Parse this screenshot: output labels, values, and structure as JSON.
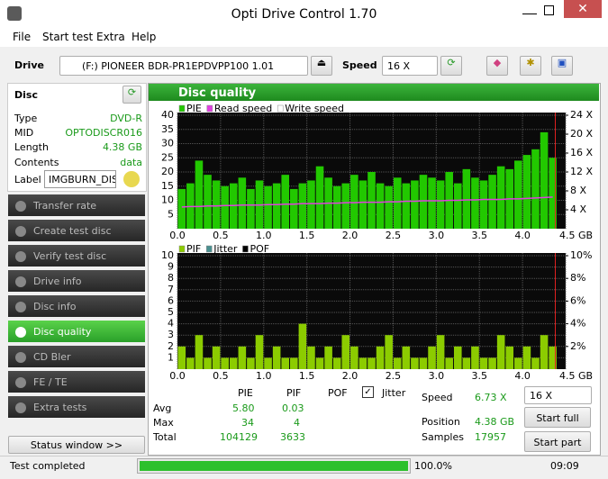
{
  "window": {
    "title": "Opti Drive Control 1.70"
  },
  "menu": [
    "File",
    "Start test",
    "Extra",
    "Help"
  ],
  "toolbar": {
    "drive_label": "Drive",
    "drive": "(F:)  PIONEER BDR-PR1EPDVPP100 1.01",
    "speed_label": "Speed",
    "speed": "16 X"
  },
  "disc": {
    "title": "Disc",
    "fields": [
      {
        "label": "Type",
        "value": "DVD-R"
      },
      {
        "label": "MID",
        "value": "OPTODISCR016"
      },
      {
        "label": "Length",
        "value": "4.38 GB"
      },
      {
        "label": "Contents",
        "value": "data"
      }
    ],
    "label_field": {
      "label": "Label",
      "value": "IMGBURN_DIS"
    }
  },
  "nav": [
    "Transfer rate",
    "Create test disc",
    "Verify test disc",
    "Drive info",
    "Disc info",
    "Disc quality",
    "CD Bler",
    "FE / TE",
    "Extra tests"
  ],
  "status_window": "Status window >>",
  "panel_title": "Disc quality",
  "chart_data": [
    {
      "type": "bar",
      "x": [
        0.05,
        0.15,
        0.25,
        0.35,
        0.45,
        0.55,
        0.65,
        0.75,
        0.85,
        0.95,
        1.05,
        1.15,
        1.25,
        1.35,
        1.45,
        1.55,
        1.65,
        1.75,
        1.85,
        1.95,
        2.05,
        2.15,
        2.25,
        2.35,
        2.45,
        2.55,
        2.65,
        2.75,
        2.85,
        2.95,
        3.05,
        3.15,
        3.25,
        3.35,
        3.45,
        3.55,
        3.65,
        3.75,
        3.85,
        3.95,
        4.05,
        4.15,
        4.25,
        4.35
      ],
      "series": [
        {
          "name": "PIE",
          "color": "#22c800",
          "type": "bar",
          "values": [
            14,
            16,
            24,
            19,
            17,
            15,
            16,
            18,
            14,
            17,
            15,
            16,
            19,
            14,
            16,
            17,
            22,
            18,
            15,
            16,
            19,
            17,
            20,
            16,
            15,
            18,
            16,
            17,
            19,
            18,
            17,
            20,
            16,
            21,
            18,
            17,
            19,
            22,
            21,
            24,
            26,
            28,
            34,
            25
          ]
        },
        {
          "name": "Read speed",
          "color": "#e040e0",
          "type": "line",
          "axis": "y2",
          "values": [
            4.6,
            4.7,
            4.7,
            4.8,
            4.8,
            4.9,
            4.9,
            5.0,
            5.0,
            5.0,
            5.1,
            5.1,
            5.2,
            5.2,
            5.3,
            5.3,
            5.3,
            5.4,
            5.4,
            5.5,
            5.5,
            5.6,
            5.6,
            5.6,
            5.7,
            5.7,
            5.8,
            5.8,
            5.9,
            5.9,
            5.9,
            6.0,
            6.0,
            6.1,
            6.1,
            6.2,
            6.2,
            6.2,
            6.3,
            6.3,
            6.4,
            6.5,
            6.6,
            6.7
          ]
        },
        {
          "name": "Write speed",
          "color": "#ffffff",
          "type": "line",
          "axis": "y2",
          "values": [
            null,
            null,
            null,
            null,
            null,
            null,
            null,
            null,
            null,
            null,
            null,
            null,
            null,
            null,
            null,
            null,
            null,
            null,
            null,
            null,
            null,
            null,
            null,
            null,
            null,
            null,
            null,
            null,
            null,
            null,
            null,
            null,
            null,
            null,
            null,
            null,
            null,
            null,
            null,
            null,
            null,
            null,
            null,
            null
          ]
        }
      ],
      "xlim": [
        0,
        4.5
      ],
      "xticks": [
        {
          "value": 0,
          "label": "0.0"
        },
        {
          "value": 0.5,
          "label": "0.5"
        },
        {
          "value": 1,
          "label": "1.0"
        },
        {
          "value": 1.5,
          "label": "1.5"
        },
        {
          "value": 2,
          "label": "2.0"
        },
        {
          "value": 2.5,
          "label": "2.5"
        },
        {
          "value": 3,
          "label": "3.0"
        },
        {
          "value": 3.5,
          "label": "3.5"
        },
        {
          "value": 4,
          "label": "4.0"
        },
        {
          "value": 4.5,
          "label": "4.5 GB"
        }
      ],
      "ylim": [
        0,
        40
      ],
      "yticks": [
        5,
        10,
        15,
        20,
        25,
        30,
        35,
        40
      ],
      "y2lim": [
        0,
        24
      ],
      "y2ticks": [
        {
          "value": 4,
          "label": "4 X"
        },
        {
          "value": 8,
          "label": "8 X"
        },
        {
          "value": 12,
          "label": "12 X"
        },
        {
          "value": 16,
          "label": "16 X"
        },
        {
          "value": 20,
          "label": "20 X"
        },
        {
          "value": 24,
          "label": "24 X"
        }
      ],
      "cursor": 4.38,
      "grid": true
    },
    {
      "type": "bar",
      "x": [
        0.05,
        0.15,
        0.25,
        0.35,
        0.45,
        0.55,
        0.65,
        0.75,
        0.85,
        0.95,
        1.05,
        1.15,
        1.25,
        1.35,
        1.45,
        1.55,
        1.65,
        1.75,
        1.85,
        1.95,
        2.05,
        2.15,
        2.25,
        2.35,
        2.45,
        2.55,
        2.65,
        2.75,
        2.85,
        2.95,
        3.05,
        3.15,
        3.25,
        3.35,
        3.45,
        3.55,
        3.65,
        3.75,
        3.85,
        3.95,
        4.05,
        4.15,
        4.25,
        4.35
      ],
      "series": [
        {
          "name": "PIF",
          "color": "#8ccc00",
          "type": "bar",
          "values": [
            2,
            1,
            3,
            1,
            2,
            1,
            1,
            2,
            1,
            3,
            1,
            2,
            1,
            1,
            4,
            2,
            1,
            2,
            1,
            3,
            2,
            1,
            1,
            2,
            3,
            1,
            2,
            1,
            1,
            2,
            3,
            1,
            2,
            1,
            2,
            1,
            1,
            3,
            2,
            1,
            2,
            1,
            3,
            2
          ]
        },
        {
          "name": "Jitter",
          "color": "#4a9090",
          "type": "line",
          "axis": "y2",
          "values": [
            null,
            null,
            null,
            null,
            null,
            null,
            null,
            null,
            null,
            null,
            null,
            null,
            null,
            null,
            null,
            null,
            null,
            null,
            null,
            null,
            null,
            null,
            null,
            null,
            null,
            null,
            null,
            null,
            null,
            null,
            null,
            null,
            null,
            null,
            null,
            null,
            null,
            null,
            null,
            null,
            null,
            null,
            null,
            null
          ]
        },
        {
          "name": "POF",
          "color": "#000000",
          "type": "bar",
          "values": [
            null,
            null,
            null,
            null,
            null,
            null,
            null,
            null,
            null,
            null,
            null,
            null,
            null,
            null,
            null,
            null,
            null,
            null,
            null,
            null,
            null,
            null,
            null,
            null,
            null,
            null,
            null,
            null,
            null,
            null,
            null,
            null,
            null,
            null,
            null,
            null,
            null,
            null,
            null,
            null,
            null,
            null,
            null,
            null
          ]
        }
      ],
      "xlim": [
        0,
        4.5
      ],
      "xticks": [
        {
          "value": 0,
          "label": "0.0"
        },
        {
          "value": 0.5,
          "label": "0.5"
        },
        {
          "value": 1,
          "label": "1.0"
        },
        {
          "value": 1.5,
          "label": "1.5"
        },
        {
          "value": 2,
          "label": "2.0"
        },
        {
          "value": 2.5,
          "label": "2.5"
        },
        {
          "value": 3,
          "label": "3.0"
        },
        {
          "value": 3.5,
          "label": "3.5"
        },
        {
          "value": 4,
          "label": "4.0"
        },
        {
          "value": 4.5,
          "label": "4.5 GB"
        }
      ],
      "ylim": [
        0,
        10
      ],
      "yticks": [
        1,
        2,
        3,
        4,
        5,
        6,
        7,
        8,
        9,
        10
      ],
      "y2lim": [
        0,
        10
      ],
      "y2ticks": [
        {
          "value": 2,
          "label": "2%"
        },
        {
          "value": 4,
          "label": "4%"
        },
        {
          "value": 6,
          "label": "6%"
        },
        {
          "value": 8,
          "label": "8%"
        },
        {
          "value": 10,
          "label": "10%"
        }
      ],
      "cursor": 4.38,
      "grid": true
    }
  ],
  "stats": {
    "columns": [
      "PIE",
      "PIF",
      "POF",
      "Jitter"
    ],
    "rows": [
      {
        "label": "Avg",
        "values": [
          "5.80",
          "0.03"
        ]
      },
      {
        "label": "Max",
        "values": [
          "34",
          "4"
        ]
      },
      {
        "label": "Total",
        "values": [
          "104129",
          "3633"
        ]
      }
    ]
  },
  "info": [
    {
      "label": "Speed",
      "value": "6.73 X"
    },
    {
      "label": "Position",
      "value": "4.38 GB"
    },
    {
      "label": "Samples",
      "value": "17957"
    }
  ],
  "controls": {
    "speed": "16 X",
    "start_full": "Start full",
    "start_part": "Start part"
  },
  "status": {
    "text": "Test completed",
    "progress": "100.0%",
    "time": "09:09"
  }
}
